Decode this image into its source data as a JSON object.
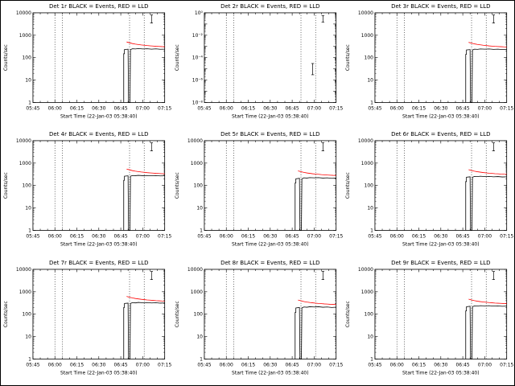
{
  "window": {
    "background": "#ffffff",
    "border_color": "#000000"
  },
  "legend": {
    "events_label": "Events",
    "lld_label": "LLD",
    "events_color": "#000000",
    "lld_color": "#ff0000"
  },
  "common": {
    "type": "line",
    "xlabel": "Start Time (22-Jan-03 05:38:40)",
    "ylabel": "Counts/sec",
    "x_units": "minutes_after_05:45",
    "xlim": [
      0,
      90
    ],
    "x_ticks": [
      "05:45",
      "06:00",
      "06:15",
      "06:30",
      "06:45",
      "07:00",
      "07:15"
    ],
    "x_minor_step": 5,
    "y_scale": "log",
    "ylim": [
      1,
      10000
    ],
    "y_ticks": [
      {
        "value": 1,
        "label": "1"
      },
      {
        "value": 10,
        "label": "10"
      },
      {
        "value": 100,
        "label": "100"
      },
      {
        "value": 1000,
        "label": "1000"
      },
      {
        "value": 10000,
        "label": "10000"
      }
    ],
    "grid": false,
    "legend_position": "in-title",
    "vlines_minutes": [
      15,
      20,
      66,
      76
    ],
    "markers": [
      {
        "x": 81,
        "y1": 3500,
        "y2": 8000
      }
    ],
    "series_x": {
      "Events": [
        62,
        62,
        62.5,
        62.5,
        65,
        65.3,
        66.3,
        66.6,
        68,
        70,
        72,
        75,
        78,
        81,
        84,
        87,
        90
      ],
      "LLD": [
        64,
        66,
        68,
        70,
        72,
        74,
        76,
        78,
        80,
        82,
        84,
        86,
        88,
        90
      ]
    }
  },
  "chart_data": [
    {
      "title": "Det 1r BLACK = Events, RED = LLD",
      "series": [
        {
          "name": "Events",
          "color": "#000000",
          "y": [
            1,
            150,
            150,
            230,
            240,
            1,
            1,
            230,
            250,
            245,
            255,
            245,
            250,
            240,
            248,
            238,
            240
          ]
        },
        {
          "name": "LLD",
          "color": "#ff0000",
          "y": [
            500,
            460,
            425,
            400,
            385,
            370,
            357,
            346,
            337,
            329,
            322,
            317,
            312,
            308
          ]
        }
      ]
    },
    {
      "title": "Det 2r BLACK = Events, RED = LLD",
      "ylim": [
        1e-08,
        1
      ],
      "y_ticks": [
        {
          "value": 1,
          "label": "10⁰"
        },
        {
          "value": 0.01,
          "label": "10⁻²"
        },
        {
          "value": 0.0001,
          "label": "10⁻⁴"
        },
        {
          "value": 1e-06,
          "label": "10⁻⁶"
        },
        {
          "value": 1e-08,
          "label": "10⁻⁸"
        }
      ],
      "markers": [
        {
          "x": 81,
          "y1": 0.15,
          "y2": 0.55
        },
        {
          "x": 74,
          "y1": 3e-06,
          "y2": 3e-05
        }
      ],
      "series": []
    },
    {
      "title": "Det 3r BLACK = Events, RED = LLD",
      "series": [
        {
          "name": "Events",
          "color": "#000000",
          "y": [
            1,
            140,
            140,
            220,
            230,
            1,
            1,
            220,
            240,
            235,
            245,
            240,
            245,
            235,
            240,
            230,
            235
          ]
        },
        {
          "name": "LLD",
          "color": "#ff0000",
          "y": [
            480,
            445,
            410,
            388,
            372,
            358,
            346,
            336,
            327,
            320,
            313,
            308,
            304,
            300
          ]
        }
      ]
    },
    {
      "title": "Det 4r BLACK = Events, RED = LLD",
      "series": [
        {
          "name": "Events",
          "color": "#000000",
          "y": [
            1,
            170,
            170,
            260,
            270,
            1,
            1,
            260,
            280,
            275,
            285,
            275,
            280,
            270,
            278,
            268,
            270
          ]
        },
        {
          "name": "LLD",
          "color": "#ff0000",
          "y": [
            540,
            500,
            462,
            435,
            418,
            402,
            388,
            376,
            366,
            357,
            350,
            344,
            339,
            335
          ]
        }
      ]
    },
    {
      "title": "Det 5r BLACK = Events, RED = LLD",
      "series": [
        {
          "name": "Events",
          "color": "#000000",
          "y": [
            1,
            130,
            130,
            200,
            210,
            1,
            1,
            200,
            220,
            215,
            225,
            220,
            225,
            215,
            220,
            210,
            215
          ]
        },
        {
          "name": "LLD",
          "color": "#ff0000",
          "y": [
            450,
            415,
            385,
            363,
            349,
            336,
            324,
            315,
            307,
            300,
            294,
            289,
            285,
            281
          ]
        }
      ]
    },
    {
      "title": "Det 6r BLACK = Events, RED = LLD",
      "series": [
        {
          "name": "Events",
          "color": "#000000",
          "y": [
            1,
            150,
            150,
            235,
            245,
            1,
            1,
            235,
            255,
            250,
            260,
            250,
            255,
            245,
            252,
            242,
            245
          ]
        },
        {
          "name": "LLD",
          "color": "#ff0000",
          "y": [
            510,
            470,
            435,
            410,
            394,
            379,
            366,
            355,
            346,
            338,
            331,
            325,
            320,
            316
          ]
        }
      ]
    },
    {
      "title": "Det 7r BLACK = Events, RED = LLD",
      "series": [
        {
          "name": "Events",
          "color": "#000000",
          "y": [
            1,
            200,
            200,
            300,
            310,
            1,
            1,
            300,
            330,
            320,
            335,
            325,
            330,
            315,
            325,
            310,
            315
          ]
        },
        {
          "name": "LLD",
          "color": "#ff0000",
          "y": [
            620,
            572,
            530,
            500,
            480,
            462,
            446,
            432,
            421,
            411,
            403,
            396,
            390,
            385
          ]
        }
      ]
    },
    {
      "title": "Det 8r BLACK = Events, RED = LLD",
      "series": [
        {
          "name": "Events",
          "color": "#000000",
          "y": [
            1,
            120,
            120,
            190,
            200,
            1,
            1,
            190,
            210,
            205,
            215,
            210,
            215,
            205,
            210,
            200,
            205
          ]
        },
        {
          "name": "LLD",
          "color": "#ff0000",
          "y": [
            430,
            397,
            368,
            347,
            333,
            321,
            310,
            301,
            293,
            287,
            281,
            276,
            272,
            269
          ]
        }
      ]
    },
    {
      "title": "Det 9r BLACK = Events, RED = LLD",
      "series": [
        {
          "name": "Events",
          "color": "#000000",
          "y": [
            1,
            140,
            140,
            215,
            225,
            1,
            1,
            215,
            235,
            230,
            240,
            235,
            240,
            230,
            236,
            226,
            230
          ]
        },
        {
          "name": "LLD",
          "color": "#ff0000",
          "y": [
            470,
            434,
            402,
            380,
            365,
            351,
            340,
            330,
            322,
            314,
            308,
            303,
            299,
            295
          ]
        }
      ]
    }
  ]
}
